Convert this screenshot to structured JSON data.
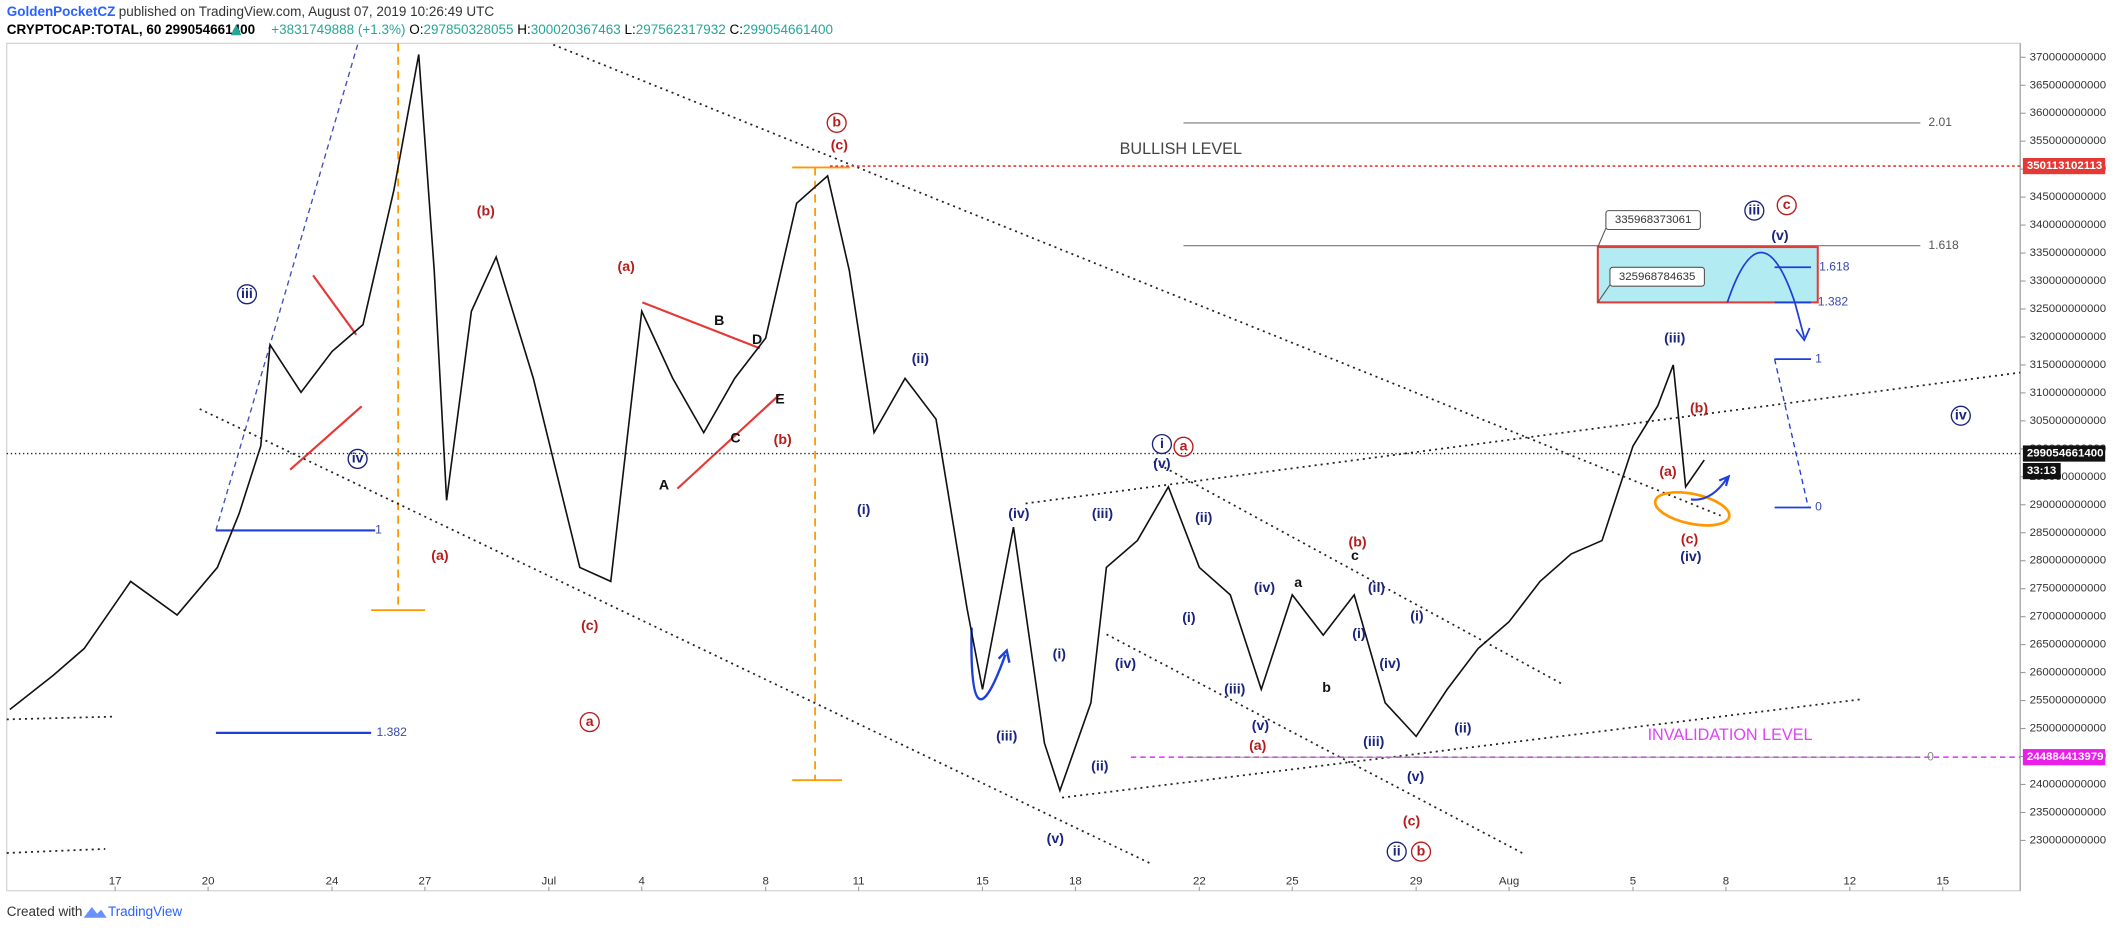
{
  "header": {
    "author": "GoldenPocketCZ",
    "published": "published on TradingView.com, August 07, 2019 10:26:49 UTC",
    "symbol": "CRYPTOCAP:TOTAL, 60",
    "last": "299054661400",
    "change": "+3831749888 (+1.3%)",
    "open_label": "O:",
    "open": "297850328055",
    "high_label": "H:",
    "high": "300020367463",
    "low_label": "L:",
    "low": "297562317932",
    "close_label": "C:",
    "close": "299054661400"
  },
  "footer": {
    "created": "Created with",
    "brand": "TradingView"
  },
  "chart_data": {
    "type": "line",
    "series": [
      {
        "color": "#111111",
        "x": [
          13.6,
          15,
          16,
          17.5,
          19,
          20.3,
          21,
          21.7,
          22,
          23,
          24,
          25,
          26,
          26.8,
          27.3,
          27.7,
          28.5,
          29.3,
          30.5,
          32,
          33,
          34,
          35,
          36,
          37,
          38,
          39,
          40,
          40.7,
          41.5,
          42.5,
          43.5,
          44.5,
          45,
          46,
          47,
          47.5,
          48.5,
          49,
          50,
          51,
          52,
          53,
          54,
          55,
          56,
          57,
          58,
          59,
          60,
          61,
          62,
          63,
          64,
          65,
          66,
          66.8,
          67.3,
          67.7,
          68.3
        ],
        "values": [
          253400000000,
          259500000000,
          264300000000,
          276300000000,
          270300000000,
          278800000000,
          288400000000,
          300500000000,
          318600000000,
          310100000000,
          317400000000,
          322200000000,
          346300000000,
          370500000000,
          331900000000,
          290800000000,
          324600000000,
          334300000000,
          312600000000,
          278800000000,
          276300000000,
          324600000000,
          312600000000,
          302900000000,
          312600000000,
          319800000000,
          343900000000,
          348800000000,
          331900000000,
          302900000000,
          312600000000,
          305300000000,
          271500000000,
          257000000000,
          286000000000,
          247400000000,
          238900000000,
          254600000000,
          278800000000,
          283600000000,
          293200000000,
          278800000000,
          273900000000,
          257000000000,
          273900000000,
          266700000000,
          273900000000,
          254600000000,
          248600000000,
          257000000000,
          264300000000,
          269100000000,
          276300000000,
          281200000000,
          283600000000,
          300500000000,
          307700000000,
          315000000000,
          293200000000,
          298000000000
        ]
      }
    ],
    "xlim": [
      13.5,
      78.5
    ],
    "xticks": [
      {
        "value": 17,
        "label": "17"
      },
      {
        "value": 20,
        "label": "20"
      },
      {
        "value": 24,
        "label": "24"
      },
      {
        "value": 27,
        "label": "27"
      },
      {
        "value": 31,
        "label": "Jul"
      },
      {
        "value": 34,
        "label": "4"
      },
      {
        "value": 38,
        "label": "8"
      },
      {
        "value": 41,
        "label": "11"
      },
      {
        "value": 45,
        "label": "15"
      },
      {
        "value": 48,
        "label": "18"
      },
      {
        "value": 52,
        "label": "22"
      },
      {
        "value": 55,
        "label": "25"
      },
      {
        "value": 59,
        "label": "29"
      },
      {
        "value": 62,
        "label": "Aug"
      },
      {
        "value": 66,
        "label": "5"
      },
      {
        "value": 69,
        "label": "8"
      },
      {
        "value": 73,
        "label": "12"
      },
      {
        "value": 76,
        "label": "15"
      }
    ],
    "ylim": [
      221000000000,
      372500000000
    ],
    "yticks": [
      230000000000,
      235000000000,
      240000000000,
      245000000000,
      250000000000,
      255000000000,
      260000000000,
      265000000000,
      270000000000,
      275000000000,
      280000000000,
      285000000000,
      290000000000,
      295000000000,
      300000000000,
      305000000000,
      310000000000,
      315000000000,
      320000000000,
      325000000000,
      330000000000,
      335000000000,
      340000000000,
      345000000000,
      350000000000,
      355000000000,
      360000000000,
      365000000000,
      370000000000
    ],
    "price_labels": [
      {
        "text": "350113102113",
        "color": "#e53935"
      },
      {
        "text": "299054661400",
        "color": "#111111"
      },
      {
        "text": "33:13",
        "color": "#111111"
      },
      {
        "text": "244884413979",
        "color": "#e91ee9"
      }
    ],
    "callouts": [
      "335968373061",
      "325968784635"
    ],
    "fib_labels": [
      {
        "text": "2.01",
        "color": "#555555"
      },
      {
        "text": "1.618",
        "color": "#555555"
      },
      {
        "text": "1",
        "color": "#3949ab"
      },
      {
        "text": "1.382",
        "color": "#3949ab"
      },
      {
        "text": "1.618",
        "color": "#3949ab"
      },
      {
        "text": "1.382",
        "color": "#3949ab"
      },
      {
        "text": "1",
        "color": "#3949ab"
      },
      {
        "text": "0",
        "color": "#3949ab"
      },
      {
        "text": "0",
        "color": "#888888"
      }
    ],
    "annotations": [
      {
        "text": "iii",
        "color": "#1a237e",
        "circled": true
      },
      {
        "text": "iv",
        "color": "#1a237e",
        "circled": true
      },
      {
        "text": "(b)",
        "color": "#b71c1c"
      },
      {
        "text": "(a)",
        "color": "#b71c1c"
      },
      {
        "text": "(c)",
        "color": "#b71c1c"
      },
      {
        "text": "a",
        "color": "#b71c1c",
        "circled": true
      },
      {
        "text": "(a)",
        "color": "#b71c1c"
      },
      {
        "text": "B",
        "color": "#111111"
      },
      {
        "text": "D",
        "color": "#111111"
      },
      {
        "text": "E",
        "color": "#111111"
      },
      {
        "text": "C",
        "color": "#111111"
      },
      {
        "text": "A",
        "color": "#111111"
      },
      {
        "text": "(b)",
        "color": "#b71c1c"
      },
      {
        "text": "b",
        "color": "#b71c1c",
        "circled": true
      },
      {
        "text": "(c)",
        "color": "#b71c1c"
      },
      {
        "text": "(ii)",
        "color": "#1a237e"
      },
      {
        "text": "(i)",
        "color": "#1a237e"
      },
      {
        "text": "(iv)",
        "color": "#1a237e"
      },
      {
        "text": "(iii)",
        "color": "#1a237e"
      },
      {
        "text": "(i)",
        "color": "#1a237e"
      },
      {
        "text": "(ii)",
        "color": "#1a237e"
      },
      {
        "text": "(v)",
        "color": "#1a237e"
      },
      {
        "text": "(iii)",
        "color": "#1a237e"
      },
      {
        "text": "i",
        "color": "#1a237e",
        "circled": true
      },
      {
        "text": "a",
        "color": "#b71c1c",
        "circled": true
      },
      {
        "text": "(v)",
        "color": "#1a237e"
      },
      {
        "text": "(ii)",
        "color": "#1a237e"
      },
      {
        "text": "(i)",
        "color": "#1a237e"
      },
      {
        "text": "(iv)",
        "color": "#1a237e"
      },
      {
        "text": "(iv)",
        "color": "#1a237e"
      },
      {
        "text": "(iii)",
        "color": "#1a237e"
      },
      {
        "text": "(v)",
        "color": "#1a237e"
      },
      {
        "text": "(a)",
        "color": "#b71c1c"
      },
      {
        "text": "a",
        "color": "#111111"
      },
      {
        "text": "b",
        "color": "#111111"
      },
      {
        "text": "(b)",
        "color": "#b71c1c"
      },
      {
        "text": "c",
        "color": "#111111"
      },
      {
        "text": "(ii)",
        "color": "#1a237e"
      },
      {
        "text": "(i)",
        "color": "#1a237e"
      },
      {
        "text": "(iv)",
        "color": "#1a237e"
      },
      {
        "text": "(iii)",
        "color": "#1a237e"
      },
      {
        "text": "(v)",
        "color": "#1a237e"
      },
      {
        "text": "(c)",
        "color": "#b71c1c"
      },
      {
        "text": "ii",
        "color": "#1a237e",
        "circled": true
      },
      {
        "text": "b",
        "color": "#b71c1c",
        "circled": true
      },
      {
        "text": "(i)",
        "color": "#1a237e"
      },
      {
        "text": "(ii)",
        "color": "#1a237e"
      },
      {
        "text": "(iii)",
        "color": "#1a237e"
      },
      {
        "text": "(b)",
        "color": "#b71c1c"
      },
      {
        "text": "(a)",
        "color": "#b71c1c"
      },
      {
        "text": "(c)",
        "color": "#b71c1c"
      },
      {
        "text": "(iv)",
        "color": "#1a237e"
      },
      {
        "text": "iii",
        "color": "#1a237e",
        "circled": true
      },
      {
        "text": "c",
        "color": "#b71c1c",
        "circled": true
      },
      {
        "text": "(v)",
        "color": "#1a237e"
      },
      {
        "text": "iv",
        "color": "#1a237e",
        "circled": true
      },
      {
        "text": "BULLISH LEVEL",
        "color": "#444444"
      },
      {
        "text": "INVALIDATION LEVEL",
        "color": "#e040fb"
      }
    ]
  }
}
